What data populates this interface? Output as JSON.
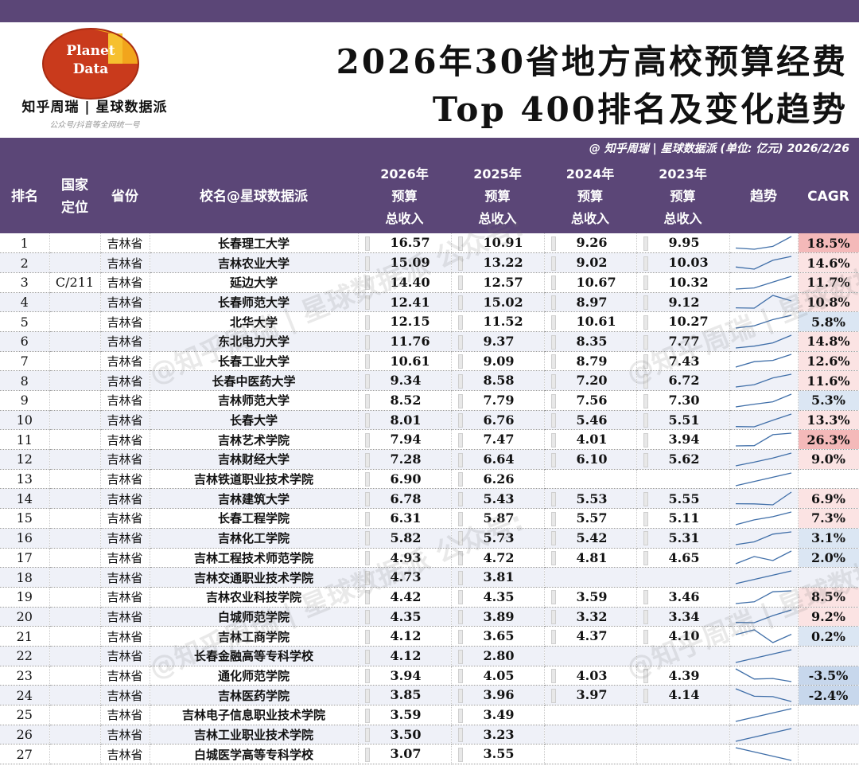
{
  "logo": {
    "line1": "Planet",
    "line2": "Data",
    "brand": "知乎周瑞 | 星球数据派",
    "sub": "公众号/抖音等全网统一号"
  },
  "title": {
    "line1": "2026年30省地方高校预算经费",
    "line2": "Top 400排名及变化趋势"
  },
  "subbar": "@ 知乎周瑞 |  星球数据派  (单位: 亿元)   2026/2/26",
  "headers": {
    "rank": "排名",
    "nat": [
      "国家",
      "定位"
    ],
    "prov": "省份",
    "name": "校名@星球数据派",
    "y2026": [
      "2026年",
      "预算",
      "总收入"
    ],
    "y2025": [
      "2025年",
      "预算",
      "总收入"
    ],
    "y2024": [
      "2024年",
      "预算",
      "总收入"
    ],
    "y2023": [
      "2023年",
      "预算",
      "总收入"
    ],
    "trend": "趋势",
    "cagr": "CAGR"
  },
  "watermark": "@知乎周瑞 | 星球数据派 公众号:",
  "rows": [
    {
      "rank": "1",
      "nat": "",
      "prov": "吉林省",
      "name": "长春理工大学",
      "y2026": "16.57",
      "y2025": "10.91",
      "y2024": "9.26",
      "y2023": "9.95",
      "cagr": "18.5%"
    },
    {
      "rank": "2",
      "nat": "",
      "prov": "吉林省",
      "name": "吉林农业大学",
      "y2026": "15.09",
      "y2025": "13.22",
      "y2024": "9.02",
      "y2023": "10.03",
      "cagr": "14.6%"
    },
    {
      "rank": "3",
      "nat": "C/211",
      "prov": "吉林省",
      "name": "延边大学",
      "y2026": "14.40",
      "y2025": "12.57",
      "y2024": "10.67",
      "y2023": "10.32",
      "cagr": "11.7%"
    },
    {
      "rank": "4",
      "nat": "",
      "prov": "吉林省",
      "name": "长春师范大学",
      "y2026": "12.41",
      "y2025": "15.02",
      "y2024": "8.97",
      "y2023": "9.12",
      "cagr": "10.8%"
    },
    {
      "rank": "5",
      "nat": "",
      "prov": "吉林省",
      "name": "北华大学",
      "y2026": "12.15",
      "y2025": "11.52",
      "y2024": "10.61",
      "y2023": "10.27",
      "cagr": "5.8%"
    },
    {
      "rank": "6",
      "nat": "",
      "prov": "吉林省",
      "name": "东北电力大学",
      "y2026": "11.76",
      "y2025": "9.37",
      "y2024": "8.35",
      "y2023": "7.77",
      "cagr": "14.8%"
    },
    {
      "rank": "7",
      "nat": "",
      "prov": "吉林省",
      "name": "长春工业大学",
      "y2026": "10.61",
      "y2025": "9.09",
      "y2024": "8.79",
      "y2023": "7.43",
      "cagr": "12.6%"
    },
    {
      "rank": "8",
      "nat": "",
      "prov": "吉林省",
      "name": "长春中医药大学",
      "y2026": "9.34",
      "y2025": "8.58",
      "y2024": "7.20",
      "y2023": "6.72",
      "cagr": "11.6%"
    },
    {
      "rank": "9",
      "nat": "",
      "prov": "吉林省",
      "name": "吉林师范大学",
      "y2026": "8.52",
      "y2025": "7.79",
      "y2024": "7.56",
      "y2023": "7.30",
      "cagr": "5.3%"
    },
    {
      "rank": "10",
      "nat": "",
      "prov": "吉林省",
      "name": "长春大学",
      "y2026": "8.01",
      "y2025": "6.76",
      "y2024": "5.46",
      "y2023": "5.51",
      "cagr": "13.3%"
    },
    {
      "rank": "11",
      "nat": "",
      "prov": "吉林省",
      "name": "吉林艺术学院",
      "y2026": "7.94",
      "y2025": "7.47",
      "y2024": "4.01",
      "y2023": "3.94",
      "cagr": "26.3%"
    },
    {
      "rank": "12",
      "nat": "",
      "prov": "吉林省",
      "name": "吉林财经大学",
      "y2026": "7.28",
      "y2025": "6.64",
      "y2024": "6.10",
      "y2023": "5.62",
      "cagr": "9.0%"
    },
    {
      "rank": "13",
      "nat": "",
      "prov": "吉林省",
      "name": "吉林铁道职业技术学院",
      "y2026": "6.90",
      "y2025": "6.26",
      "y2024": "",
      "y2023": "",
      "cagr": ""
    },
    {
      "rank": "14",
      "nat": "",
      "prov": "吉林省",
      "name": "吉林建筑大学",
      "y2026": "6.78",
      "y2025": "5.43",
      "y2024": "5.53",
      "y2023": "5.55",
      "cagr": "6.9%"
    },
    {
      "rank": "15",
      "nat": "",
      "prov": "吉林省",
      "name": "长春工程学院",
      "y2026": "6.31",
      "y2025": "5.87",
      "y2024": "5.57",
      "y2023": "5.11",
      "cagr": "7.3%"
    },
    {
      "rank": "16",
      "nat": "",
      "prov": "吉林省",
      "name": "吉林化工学院",
      "y2026": "5.82",
      "y2025": "5.73",
      "y2024": "5.42",
      "y2023": "5.31",
      "cagr": "3.1%"
    },
    {
      "rank": "17",
      "nat": "",
      "prov": "吉林省",
      "name": "吉林工程技术师范学院",
      "y2026": "4.93",
      "y2025": "4.72",
      "y2024": "4.81",
      "y2023": "4.65",
      "cagr": "2.0%"
    },
    {
      "rank": "18",
      "nat": "",
      "prov": "吉林省",
      "name": "吉林交通职业技术学院",
      "y2026": "4.73",
      "y2025": "3.81",
      "y2024": "",
      "y2023": "",
      "cagr": ""
    },
    {
      "rank": "19",
      "nat": "",
      "prov": "吉林省",
      "name": "吉林农业科技学院",
      "y2026": "4.42",
      "y2025": "4.35",
      "y2024": "3.59",
      "y2023": "3.46",
      "cagr": "8.5%"
    },
    {
      "rank": "20",
      "nat": "",
      "prov": "吉林省",
      "name": "白城师范学院",
      "y2026": "4.35",
      "y2025": "3.89",
      "y2024": "3.32",
      "y2023": "3.34",
      "cagr": "9.2%"
    },
    {
      "rank": "21",
      "nat": "",
      "prov": "吉林省",
      "name": "吉林工商学院",
      "y2026": "4.12",
      "y2025": "3.65",
      "y2024": "4.37",
      "y2023": "4.10",
      "cagr": "0.2%"
    },
    {
      "rank": "22",
      "nat": "",
      "prov": "吉林省",
      "name": "长春金融高等专科学校",
      "y2026": "4.12",
      "y2025": "2.80",
      "y2024": "",
      "y2023": "",
      "cagr": ""
    },
    {
      "rank": "23",
      "nat": "",
      "prov": "吉林省",
      "name": "通化师范学院",
      "y2026": "3.94",
      "y2025": "4.05",
      "y2024": "4.03",
      "y2023": "4.39",
      "cagr": "-3.5%"
    },
    {
      "rank": "24",
      "nat": "",
      "prov": "吉林省",
      "name": "吉林医药学院",
      "y2026": "3.85",
      "y2025": "3.96",
      "y2024": "3.97",
      "y2023": "4.14",
      "cagr": "-2.4%"
    },
    {
      "rank": "25",
      "nat": "",
      "prov": "吉林省",
      "name": "吉林电子信息职业技术学院",
      "y2026": "3.59",
      "y2025": "3.49",
      "y2024": "",
      "y2023": "",
      "cagr": ""
    },
    {
      "rank": "26",
      "nat": "",
      "prov": "吉林省",
      "name": "吉林工业职业技术学院",
      "y2026": "3.50",
      "y2025": "3.23",
      "y2024": "",
      "y2023": "",
      "cagr": ""
    },
    {
      "rank": "27",
      "nat": "",
      "prov": "吉林省",
      "name": "白城医学高等专科学校",
      "y2026": "3.07",
      "y2025": "3.55",
      "y2024": "",
      "y2023": "",
      "cagr": ""
    }
  ],
  "colors": {
    "purple": "#5b4677",
    "cagr_high": "#f4b9b9",
    "cagr_mid": "#fbe3e3",
    "cagr_low": "#dbe6f3",
    "cagr_neg": "#c7d7ec",
    "trend_line": "#3f6ea8"
  }
}
